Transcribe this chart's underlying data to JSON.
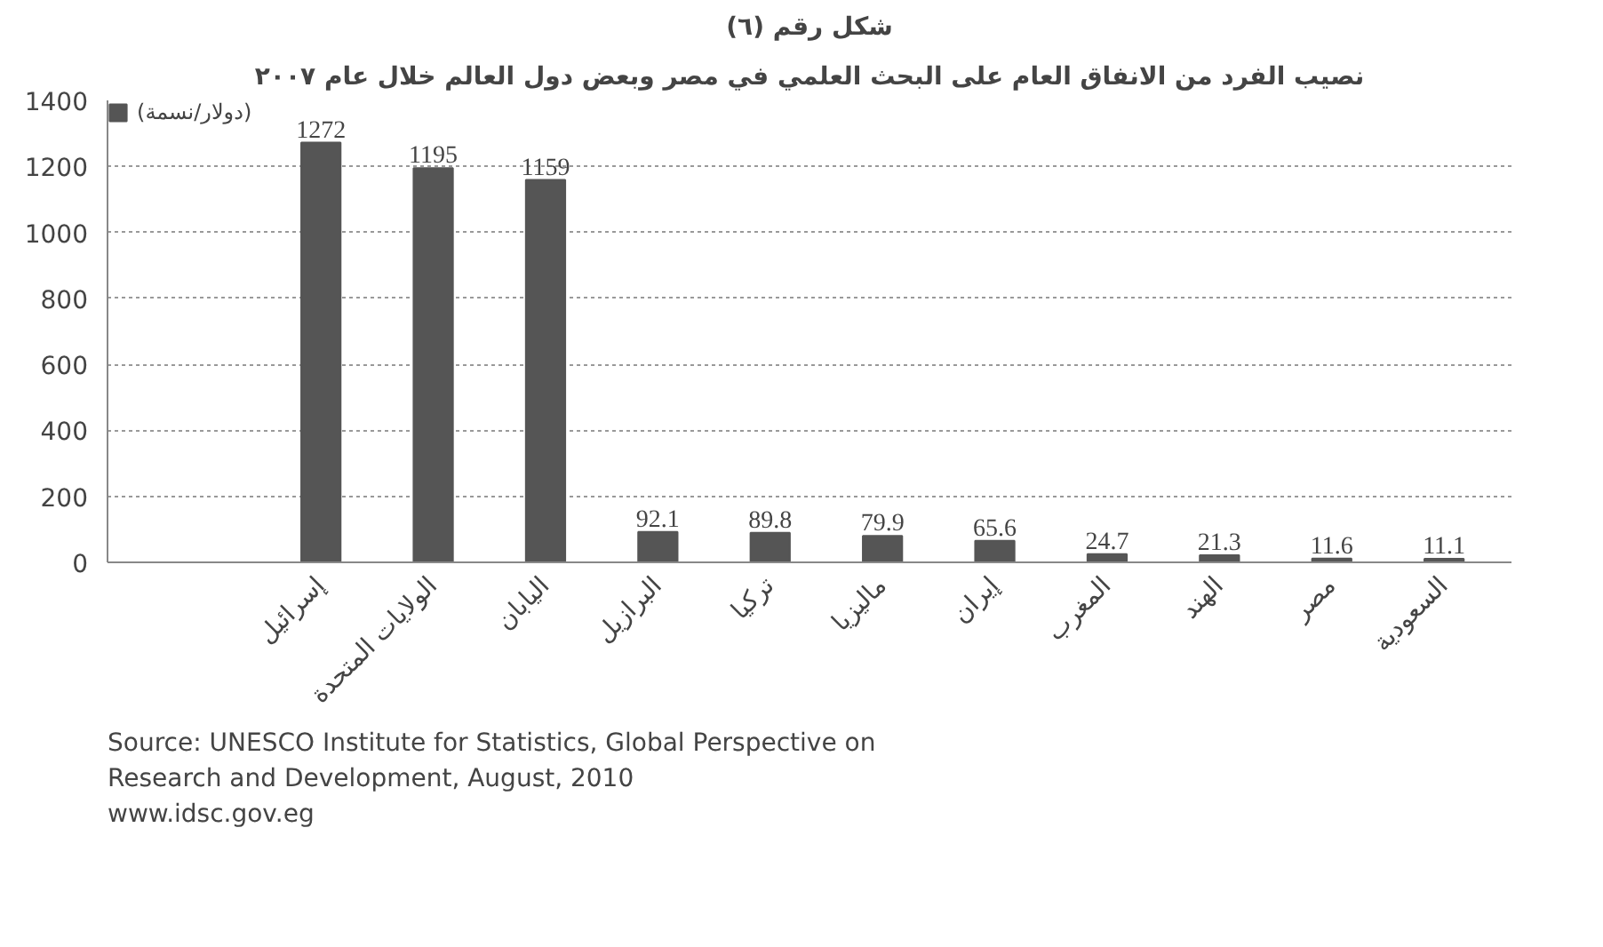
{
  "chart_data": {
    "type": "bar",
    "title": "شكل رقم (٦)",
    "subtitle": "نصيب الفرد من الانفاق العام على البحث العلمي في مصر وبعض دول العالم خلال عام ٢٠٠٧",
    "categories": [
      "إسرائيل",
      "الولايات المتحدة",
      "اليابان",
      "البرازيل",
      "تركيا",
      "ماليزيا",
      "إيران",
      "المغرب",
      "الهند",
      "مصر",
      "السعودية"
    ],
    "series": [
      {
        "name": "(دولار/نسمة)",
        "color": "#555555",
        "values": [
          1272,
          1195,
          1159,
          92.1,
          89.8,
          79.9,
          65.6,
          24.7,
          21.3,
          11.6,
          11.1
        ]
      }
    ],
    "ylim": [
      0,
      1400
    ],
    "yticks": [
      0,
      200,
      400,
      600,
      800,
      1000,
      1200,
      1400
    ],
    "grid": "y",
    "legend": "top left",
    "data_labels": true,
    "annotations": [
      "Source: UNESCO Institute for Statistics, Global Perspective on Research and Development, August, 2010",
      "www.idsc.gov.eg"
    ]
  }
}
